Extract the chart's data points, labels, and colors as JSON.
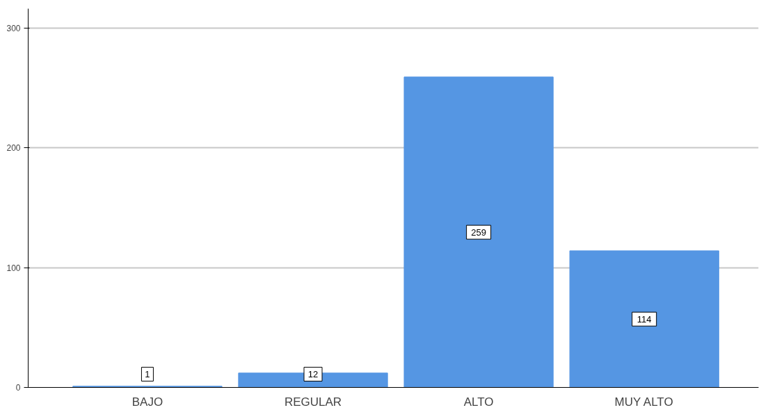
{
  "chart_data": {
    "type": "bar",
    "categories": [
      "BAJO",
      "REGULAR",
      "ALTO",
      "MUY ALTO"
    ],
    "values": [
      1,
      12,
      259,
      114
    ],
    "color": "#5596e3",
    "ylim": [
      0,
      316
    ],
    "yticks": [
      0,
      100,
      200,
      300
    ],
    "grid": "y",
    "data_labels": true
  }
}
